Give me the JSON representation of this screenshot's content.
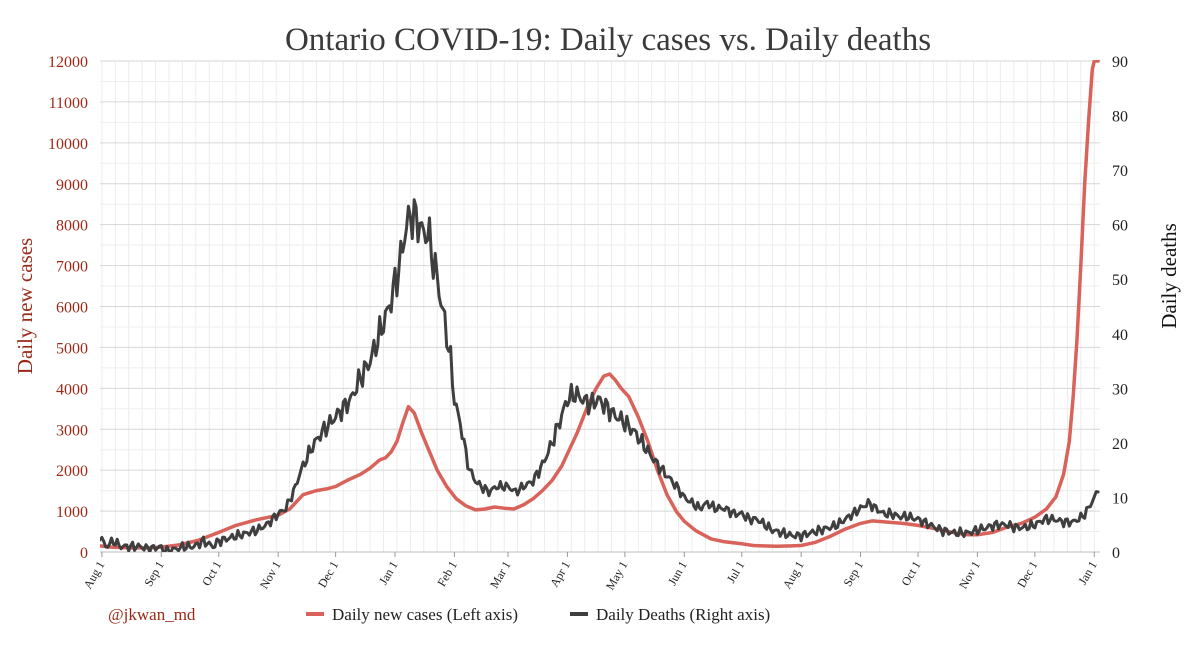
{
  "chart_data": {
    "type": "line",
    "title": "Ontario COVID-19: Daily cases vs. Daily deaths",
    "xlabel": "",
    "ylabel_left": "Daily new cases",
    "ylabel_right": "Daily deaths",
    "ylim_left": [
      0,
      12000
    ],
    "ylim_right": [
      0,
      90
    ],
    "yticks_left": [
      "0",
      "1000",
      "2000",
      "3000",
      "4000",
      "5000",
      "6000",
      "7000",
      "8000",
      "9000",
      "10000",
      "11000",
      "12000"
    ],
    "yticks_right": [
      "0",
      "10",
      "20",
      "30",
      "40",
      "50",
      "60",
      "70",
      "80",
      "90"
    ],
    "xlim": [
      -1,
      521
    ],
    "xticks": [
      {
        "label": "Aug 1",
        "x": 0
      },
      {
        "label": "Sep 1",
        "x": 31
      },
      {
        "label": "Oct 1",
        "x": 61
      },
      {
        "label": "Nov 1",
        "x": 92
      },
      {
        "label": "Dec 1",
        "x": 122
      },
      {
        "label": "Jan 1",
        "x": 153
      },
      {
        "label": "Feb 1",
        "x": 184
      },
      {
        "label": "Mar 1",
        "x": 212
      },
      {
        "label": "Apr 1",
        "x": 243
      },
      {
        "label": "May 1",
        "x": 273
      },
      {
        "label": "Jun 1",
        "x": 304
      },
      {
        "label": "Jul 1",
        "x": 334
      },
      {
        "label": "Aug 1",
        "x": 365
      },
      {
        "label": "Sep 1",
        "x": 396
      },
      {
        "label": "Oct 1",
        "x": 426
      },
      {
        "label": "Nov 1",
        "x": 457
      },
      {
        "label": "Dec 1",
        "x": 487
      },
      {
        "label": "Jan 1",
        "x": 518
      }
    ],
    "grid": true,
    "legend_position": "bottom",
    "credit": "@jkwan_md",
    "series": [
      {
        "name": "Daily new cases (Left axis)",
        "axis": "left",
        "color": "#d9625a",
        "x": [
          -1,
          5,
          15,
          25,
          31,
          40,
          50,
          61,
          70,
          80,
          92,
          98,
          105,
          112,
          118,
          122,
          128,
          135,
          140,
          145,
          148,
          151,
          154,
          157,
          160,
          163,
          167,
          171,
          175,
          180,
          185,
          190,
          195,
          200,
          205,
          210,
          215,
          220,
          225,
          230,
          235,
          240,
          243,
          248,
          253,
          258,
          262,
          265,
          268,
          271,
          275,
          280,
          285,
          290,
          295,
          300,
          304,
          310,
          318,
          325,
          334,
          340,
          345,
          352,
          360,
          365,
          372,
          380,
          388,
          396,
          402,
          410,
          418,
          426,
          435,
          445,
          452,
          457,
          465,
          472,
          480,
          487,
          493,
          498,
          502,
          505,
          507,
          509,
          511,
          513,
          515,
          517,
          518,
          519,
          520
        ],
        "values": [
          150,
          120,
          100,
          100,
          120,
          170,
          280,
          480,
          650,
          780,
          900,
          1050,
          1400,
          1500,
          1550,
          1600,
          1750,
          1900,
          2050,
          2250,
          2300,
          2450,
          2700,
          3150,
          3550,
          3400,
          2900,
          2450,
          2000,
          1600,
          1300,
          1130,
          1030,
          1050,
          1100,
          1070,
          1050,
          1150,
          1300,
          1500,
          1750,
          2100,
          2400,
          2900,
          3500,
          4000,
          4300,
          4350,
          4200,
          4000,
          3800,
          3300,
          2700,
          2000,
          1400,
          980,
          750,
          520,
          320,
          250,
          200,
          160,
          150,
          140,
          150,
          160,
          230,
          380,
          560,
          700,
          760,
          730,
          700,
          650,
          570,
          470,
          420,
          420,
          480,
          600,
          700,
          850,
          1050,
          1350,
          1900,
          2700,
          3800,
          5200,
          7000,
          9000,
          10500,
          11800,
          12000,
          12000,
          12000
        ]
      },
      {
        "name": "Daily Deaths (Right axis)",
        "axis": "right",
        "color": "#3f3f3f",
        "x": [
          -1,
          2,
          6,
          10,
          15,
          20,
          25,
          30,
          33,
          38,
          43,
          48,
          53,
          58,
          61,
          66,
          71,
          76,
          81,
          86,
          92,
          96,
          100,
          104,
          108,
          111,
          115,
          120,
          125,
          130,
          135,
          140,
          145,
          150,
          155,
          159,
          162,
          164,
          166,
          168,
          170,
          172,
          174,
          176,
          178,
          180,
          182,
          184,
          186,
          188,
          190,
          192,
          195,
          198,
          202,
          206,
          212,
          216,
          220,
          225,
          230,
          235,
          240,
          243,
          247,
          251,
          255,
          259,
          262,
          265,
          268,
          272,
          275,
          278,
          282,
          286,
          290,
          295,
          300,
          304,
          308,
          312,
          316,
          320,
          325,
          330,
          334,
          338,
          342,
          346,
          350,
          355,
          360,
          365,
          370,
          375,
          380,
          384,
          388,
          392,
          396,
          400,
          404,
          408,
          412,
          416,
          420,
          426,
          432,
          438,
          445,
          452,
          457,
          462,
          467,
          472,
          477,
          482,
          487,
          492,
          497,
          502,
          507,
          512,
          515,
          518,
          520
        ],
        "values": [
          3,
          1,
          2,
          1,
          1,
          1,
          0.5,
          1,
          0,
          0.5,
          1,
          1,
          2,
          1,
          2,
          2.5,
          3,
          3.5,
          4,
          5,
          7,
          8,
          11,
          15,
          18,
          20,
          22,
          24,
          26,
          28,
          32,
          35,
          40,
          45,
          52,
          60,
          62,
          61,
          60,
          58,
          59,
          55,
          52,
          48,
          44,
          40,
          35,
          28,
          25,
          22,
          18,
          15,
          13,
          12,
          11,
          12,
          12,
          11,
          12,
          13,
          16,
          20,
          25,
          28,
          29,
          28,
          27,
          28,
          27,
          26,
          25,
          24,
          23,
          22,
          20,
          18,
          16,
          14,
          12,
          10,
          9,
          8,
          9,
          8,
          8,
          7,
          7,
          6,
          6,
          5,
          4,
          3.5,
          3,
          3,
          3.5,
          4,
          4.5,
          5,
          6,
          7,
          8,
          9,
          8,
          7,
          7,
          6.5,
          6.5,
          6,
          5,
          4,
          3.5,
          3.5,
          4,
          4.5,
          5,
          5,
          4.5,
          4.5,
          5,
          6,
          6,
          5.5,
          5.5,
          6.5,
          8,
          10,
          11
        ]
      }
    ]
  }
}
